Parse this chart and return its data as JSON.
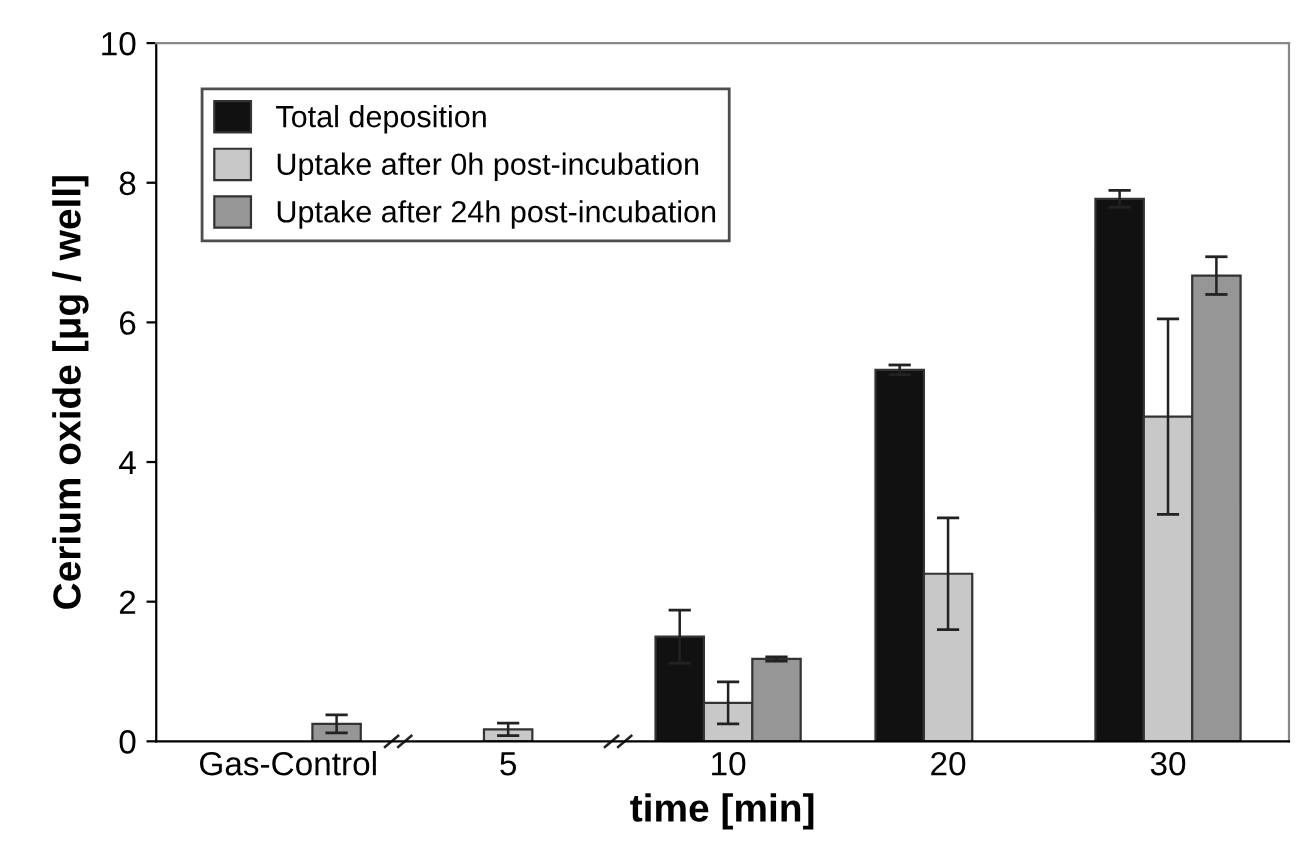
{
  "chart_data": {
    "type": "bar",
    "xlabel": "time [min]",
    "ylabel": "Cerium oxide [μg / well]",
    "categories": [
      "Gas-Control",
      "5",
      "10",
      "20",
      "30"
    ],
    "series": [
      {
        "name": "Total deposition",
        "color": "#111111",
        "values": [
          null,
          null,
          1.5,
          5.32,
          7.77
        ],
        "errors": [
          null,
          null,
          0.38,
          0.07,
          0.12
        ]
      },
      {
        "name": "Uptake after 0h post-incubation",
        "color": "#c8c8c8",
        "values": [
          null,
          0.17,
          0.55,
          2.4,
          4.65
        ],
        "errors": [
          null,
          0.09,
          0.3,
          0.8,
          1.4
        ]
      },
      {
        "name": "Uptake after 24h post-incubation",
        "color": "#969696",
        "values": [
          0.25,
          null,
          1.18,
          null,
          6.67
        ],
        "errors": [
          0.13,
          null,
          0.03,
          null,
          0.27
        ]
      }
    ],
    "ylim": [
      0,
      10
    ],
    "yticks": [
      0,
      2,
      4,
      6,
      8,
      10
    ],
    "grid": false,
    "legend": "top left"
  }
}
